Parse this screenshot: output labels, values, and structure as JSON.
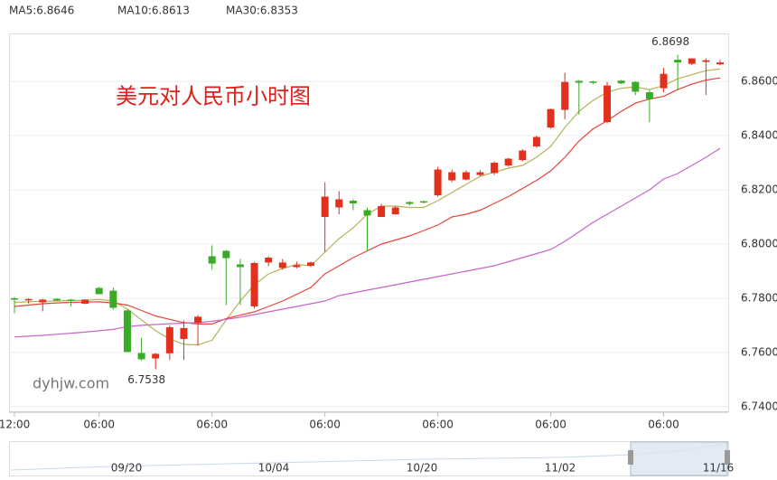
{
  "chart_data": {
    "type": "candlestick",
    "title": "美元对人民币小时图",
    "watermark": "dyhjw.com",
    "categories": [
      "12:00",
      null,
      null,
      null,
      null,
      null,
      "06:00",
      null,
      null,
      null,
      null,
      null,
      null,
      null,
      "06:00",
      null,
      null,
      null,
      null,
      null,
      null,
      null,
      "06:00",
      null,
      null,
      null,
      null,
      null,
      null,
      null,
      "06:00",
      null,
      null,
      null,
      null,
      null,
      null,
      null,
      "06:00",
      null,
      null,
      null,
      null,
      null,
      null,
      null,
      "06:00",
      null,
      null,
      null,
      null
    ],
    "open": [
      6.78,
      6.7792,
      6.7785,
      6.7798,
      6.7795,
      6.778,
      6.7838,
      6.7828,
      6.7755,
      6.7598,
      6.7578,
      6.7597,
      6.765,
      6.771,
      6.7955,
      6.7975,
      6.7925,
      6.777,
      6.7932,
      6.7912,
      6.7915,
      6.792,
      6.81,
      6.8135,
      6.816,
      6.8125,
      6.81,
      6.811,
      6.8155,
      6.8158,
      6.818,
      6.8235,
      6.8238,
      6.8255,
      6.8262,
      6.829,
      6.831,
      6.836,
      6.843,
      6.8495,
      6.8602,
      6.86,
      6.845,
      6.8603,
      6.8598,
      6.856,
      6.8575,
      6.868,
      6.8665,
      6.8672,
      6.8663
    ],
    "high": [
      6.7805,
      6.78,
      6.7798,
      6.78,
      6.7797,
      6.7797,
      6.7842,
      6.784,
      6.7758,
      6.7655,
      6.7598,
      6.77,
      6.7718,
      6.7738,
      6.7995,
      6.7978,
      6.7945,
      6.7935,
      6.7955,
      6.7945,
      6.7935,
      6.7935,
      6.8228,
      6.8195,
      6.8165,
      6.8135,
      6.8148,
      6.814,
      6.8158,
      6.816,
      6.8285,
      6.8275,
      6.8272,
      6.8272,
      6.8305,
      6.8318,
      6.835,
      6.84,
      6.85,
      6.8632,
      6.8605,
      6.8602,
      6.8598,
      6.8605,
      6.86,
      6.8568,
      6.865,
      6.8698,
      6.8685,
      6.8685,
      6.868
    ],
    "low": [
      6.7745,
      6.778,
      6.7752,
      6.779,
      6.777,
      6.7778,
      6.7818,
      6.7758,
      6.76,
      6.757,
      6.7538,
      6.7572,
      6.7572,
      6.7625,
      6.7905,
      6.7775,
      6.7775,
      6.7762,
      6.7918,
      6.7905,
      6.791,
      6.7915,
      6.797,
      6.811,
      6.8125,
      6.7975,
      6.81,
      6.8108,
      6.8142,
      6.815,
      6.8175,
      6.8228,
      6.8235,
      6.825,
      6.8255,
      6.8285,
      6.8305,
      6.8355,
      6.8425,
      6.846,
      6.8478,
      6.859,
      6.8445,
      6.859,
      6.855,
      6.845,
      6.856,
      6.857,
      6.866,
      6.855,
      6.866
    ],
    "close": [
      6.7795,
      6.7797,
      6.7795,
      6.7792,
      6.779,
      6.7795,
      6.7815,
      6.7765,
      6.7602,
      6.7575,
      6.7595,
      6.7693,
      6.769,
      6.7732,
      6.7928,
      6.7948,
      6.7915,
      6.793,
      6.795,
      6.7932,
      6.7922,
      6.7932,
      6.8175,
      6.8165,
      6.815,
      6.8105,
      6.814,
      6.8135,
      6.8148,
      6.8155,
      6.8275,
      6.8265,
      6.8265,
      6.8265,
      6.83,
      6.8315,
      6.8345,
      6.8395,
      6.8498,
      6.8598,
      6.8595,
      6.8595,
      6.8585,
      6.8593,
      6.8562,
      6.8535,
      6.8628,
      6.867,
      6.8685,
      6.8678,
      6.867
    ],
    "up_color": "#e3301c",
    "down_color": "#3aab26",
    "series": [
      {
        "name": "MA5:6.8646",
        "color": "#b7b25a",
        "label_color": "#b59a17",
        "values": [
          6.7785,
          6.7787,
          6.7789,
          6.779,
          6.7792,
          6.7792,
          6.7796,
          6.779,
          6.776,
          6.772,
          6.768,
          6.765,
          6.763,
          6.7628,
          6.7645,
          6.772,
          6.779,
          6.785,
          6.789,
          6.791,
          6.7925,
          6.792,
          6.797,
          6.802,
          6.806,
          6.811,
          6.814,
          6.814,
          6.8135,
          6.8135,
          6.816,
          6.819,
          6.822,
          6.825,
          6.8265,
          6.828,
          6.829,
          6.832,
          6.836,
          6.843,
          6.849,
          6.853,
          6.856,
          6.8575,
          6.858,
          6.857,
          6.8585,
          6.861,
          6.8625,
          6.864,
          6.8646
        ]
      },
      {
        "name": "MA10:6.8613",
        "color": "#e8433b",
        "label_color": "#e0202a",
        "values": [
          6.777,
          6.7775,
          6.778,
          6.7783,
          6.7785,
          6.7786,
          6.7787,
          6.7783,
          6.7775,
          6.7755,
          6.7735,
          6.7722,
          6.771,
          6.7705,
          6.7705,
          6.7725,
          6.7738,
          6.775,
          6.777,
          6.779,
          6.7815,
          6.784,
          6.789,
          6.792,
          6.795,
          6.7975,
          6.8,
          6.8015,
          6.803,
          6.805,
          6.807,
          6.81,
          6.811,
          6.8125,
          6.815,
          6.8175,
          6.8205,
          6.8235,
          6.827,
          6.832,
          6.838,
          6.8425,
          6.8455,
          6.849,
          6.852,
          6.8535,
          6.8545,
          6.857,
          6.859,
          6.8605,
          6.8613
        ]
      },
      {
        "name": "MA30:6.8353",
        "color": "#c865c8",
        "label_color": "#b050c0",
        "values": [
          6.7657,
          6.766,
          6.7663,
          6.7667,
          6.7671,
          6.7675,
          6.768,
          6.7685,
          6.7695,
          6.77,
          6.7703,
          6.7706,
          6.7708,
          6.771,
          6.7715,
          6.7722,
          6.773,
          6.774,
          6.775,
          6.776,
          6.777,
          6.778,
          6.779,
          6.781,
          6.782,
          6.783,
          6.784,
          6.785,
          6.786,
          6.787,
          6.788,
          6.789,
          6.79,
          6.791,
          6.792,
          6.7935,
          6.795,
          6.7965,
          6.798,
          6.801,
          6.8045,
          6.808,
          6.811,
          6.814,
          6.817,
          6.82,
          6.824,
          6.826,
          6.829,
          6.832,
          6.8353
        ]
      }
    ],
    "annotations": [
      "6.7538",
      "6.8698"
    ],
    "ylim": [
      6.7383,
      6.8777
    ],
    "yticks": [
      {
        "value": 6.74,
        "label": "6.7400"
      },
      {
        "value": 6.76,
        "label": "6.7600"
      },
      {
        "value": 6.78,
        "label": "6.7800"
      },
      {
        "value": 6.8,
        "label": "6.8000"
      },
      {
        "value": 6.82,
        "label": "6.8200"
      },
      {
        "value": 6.84,
        "label": "6.8400"
      },
      {
        "value": 6.86,
        "label": "6.8600"
      }
    ],
    "grid": true,
    "navigator_labels": [
      "09/20",
      "10/04",
      "10/20",
      "11/02",
      "11/16"
    ]
  }
}
